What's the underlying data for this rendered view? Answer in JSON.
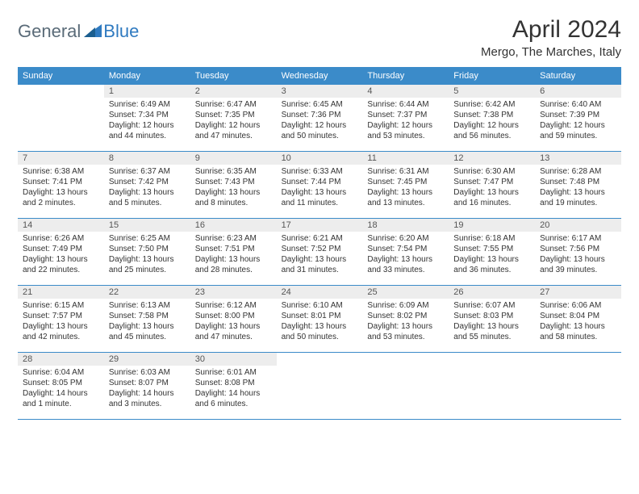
{
  "logo": {
    "general": "General",
    "blue": "Blue"
  },
  "title": "April 2024",
  "subtitle": "Mergo, The Marches, Italy",
  "header_bg": "#3b8bc9",
  "daynum_bg": "#ededed",
  "days": [
    "Sunday",
    "Monday",
    "Tuesday",
    "Wednesday",
    "Thursday",
    "Friday",
    "Saturday"
  ],
  "weeks": [
    [
      {
        "n": "",
        "sr": "",
        "ss": "",
        "dl": ""
      },
      {
        "n": "1",
        "sr": "Sunrise: 6:49 AM",
        "ss": "Sunset: 7:34 PM",
        "dl": "Daylight: 12 hours and 44 minutes."
      },
      {
        "n": "2",
        "sr": "Sunrise: 6:47 AM",
        "ss": "Sunset: 7:35 PM",
        "dl": "Daylight: 12 hours and 47 minutes."
      },
      {
        "n": "3",
        "sr": "Sunrise: 6:45 AM",
        "ss": "Sunset: 7:36 PM",
        "dl": "Daylight: 12 hours and 50 minutes."
      },
      {
        "n": "4",
        "sr": "Sunrise: 6:44 AM",
        "ss": "Sunset: 7:37 PM",
        "dl": "Daylight: 12 hours and 53 minutes."
      },
      {
        "n": "5",
        "sr": "Sunrise: 6:42 AM",
        "ss": "Sunset: 7:38 PM",
        "dl": "Daylight: 12 hours and 56 minutes."
      },
      {
        "n": "6",
        "sr": "Sunrise: 6:40 AM",
        "ss": "Sunset: 7:39 PM",
        "dl": "Daylight: 12 hours and 59 minutes."
      }
    ],
    [
      {
        "n": "7",
        "sr": "Sunrise: 6:38 AM",
        "ss": "Sunset: 7:41 PM",
        "dl": "Daylight: 13 hours and 2 minutes."
      },
      {
        "n": "8",
        "sr": "Sunrise: 6:37 AM",
        "ss": "Sunset: 7:42 PM",
        "dl": "Daylight: 13 hours and 5 minutes."
      },
      {
        "n": "9",
        "sr": "Sunrise: 6:35 AM",
        "ss": "Sunset: 7:43 PM",
        "dl": "Daylight: 13 hours and 8 minutes."
      },
      {
        "n": "10",
        "sr": "Sunrise: 6:33 AM",
        "ss": "Sunset: 7:44 PM",
        "dl": "Daylight: 13 hours and 11 minutes."
      },
      {
        "n": "11",
        "sr": "Sunrise: 6:31 AM",
        "ss": "Sunset: 7:45 PM",
        "dl": "Daylight: 13 hours and 13 minutes."
      },
      {
        "n": "12",
        "sr": "Sunrise: 6:30 AM",
        "ss": "Sunset: 7:47 PM",
        "dl": "Daylight: 13 hours and 16 minutes."
      },
      {
        "n": "13",
        "sr": "Sunrise: 6:28 AM",
        "ss": "Sunset: 7:48 PM",
        "dl": "Daylight: 13 hours and 19 minutes."
      }
    ],
    [
      {
        "n": "14",
        "sr": "Sunrise: 6:26 AM",
        "ss": "Sunset: 7:49 PM",
        "dl": "Daylight: 13 hours and 22 minutes."
      },
      {
        "n": "15",
        "sr": "Sunrise: 6:25 AM",
        "ss": "Sunset: 7:50 PM",
        "dl": "Daylight: 13 hours and 25 minutes."
      },
      {
        "n": "16",
        "sr": "Sunrise: 6:23 AM",
        "ss": "Sunset: 7:51 PM",
        "dl": "Daylight: 13 hours and 28 minutes."
      },
      {
        "n": "17",
        "sr": "Sunrise: 6:21 AM",
        "ss": "Sunset: 7:52 PM",
        "dl": "Daylight: 13 hours and 31 minutes."
      },
      {
        "n": "18",
        "sr": "Sunrise: 6:20 AM",
        "ss": "Sunset: 7:54 PM",
        "dl": "Daylight: 13 hours and 33 minutes."
      },
      {
        "n": "19",
        "sr": "Sunrise: 6:18 AM",
        "ss": "Sunset: 7:55 PM",
        "dl": "Daylight: 13 hours and 36 minutes."
      },
      {
        "n": "20",
        "sr": "Sunrise: 6:17 AM",
        "ss": "Sunset: 7:56 PM",
        "dl": "Daylight: 13 hours and 39 minutes."
      }
    ],
    [
      {
        "n": "21",
        "sr": "Sunrise: 6:15 AM",
        "ss": "Sunset: 7:57 PM",
        "dl": "Daylight: 13 hours and 42 minutes."
      },
      {
        "n": "22",
        "sr": "Sunrise: 6:13 AM",
        "ss": "Sunset: 7:58 PM",
        "dl": "Daylight: 13 hours and 45 minutes."
      },
      {
        "n": "23",
        "sr": "Sunrise: 6:12 AM",
        "ss": "Sunset: 8:00 PM",
        "dl": "Daylight: 13 hours and 47 minutes."
      },
      {
        "n": "24",
        "sr": "Sunrise: 6:10 AM",
        "ss": "Sunset: 8:01 PM",
        "dl": "Daylight: 13 hours and 50 minutes."
      },
      {
        "n": "25",
        "sr": "Sunrise: 6:09 AM",
        "ss": "Sunset: 8:02 PM",
        "dl": "Daylight: 13 hours and 53 minutes."
      },
      {
        "n": "26",
        "sr": "Sunrise: 6:07 AM",
        "ss": "Sunset: 8:03 PM",
        "dl": "Daylight: 13 hours and 55 minutes."
      },
      {
        "n": "27",
        "sr": "Sunrise: 6:06 AM",
        "ss": "Sunset: 8:04 PM",
        "dl": "Daylight: 13 hours and 58 minutes."
      }
    ],
    [
      {
        "n": "28",
        "sr": "Sunrise: 6:04 AM",
        "ss": "Sunset: 8:05 PM",
        "dl": "Daylight: 14 hours and 1 minute."
      },
      {
        "n": "29",
        "sr": "Sunrise: 6:03 AM",
        "ss": "Sunset: 8:07 PM",
        "dl": "Daylight: 14 hours and 3 minutes."
      },
      {
        "n": "30",
        "sr": "Sunrise: 6:01 AM",
        "ss": "Sunset: 8:08 PM",
        "dl": "Daylight: 14 hours and 6 minutes."
      },
      {
        "n": "",
        "sr": "",
        "ss": "",
        "dl": ""
      },
      {
        "n": "",
        "sr": "",
        "ss": "",
        "dl": ""
      },
      {
        "n": "",
        "sr": "",
        "ss": "",
        "dl": ""
      },
      {
        "n": "",
        "sr": "",
        "ss": "",
        "dl": ""
      }
    ]
  ]
}
